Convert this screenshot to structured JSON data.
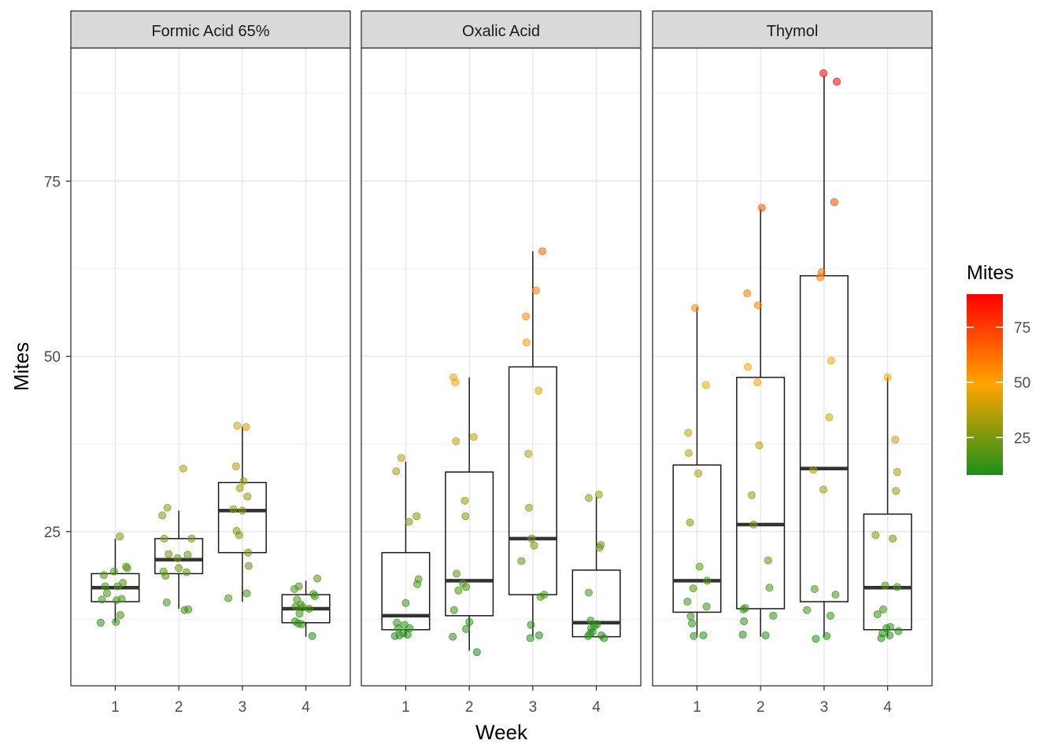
{
  "chart_data": {
    "type": "boxplot-jitter",
    "xlabel": "Week",
    "ylabel": "Mites",
    "ylim": [
      3,
      94
    ],
    "y_ticks": [
      25,
      50,
      75
    ],
    "x_ticks": [
      "1",
      "2",
      "3",
      "4"
    ],
    "legend": {
      "title": "Mites",
      "ticks": [
        25,
        50,
        75
      ],
      "range": [
        8,
        90
      ],
      "colors": [
        "#1a8f1a",
        "#ffa500",
        "#ff0000"
      ],
      "placement": "right"
    },
    "panels": [
      {
        "name": "Formic Acid 65%",
        "boxes": [
          {
            "week": 1,
            "min": 12,
            "q1": 15,
            "median": 17,
            "q3": 19,
            "max": 24
          },
          {
            "week": 2,
            "min": 14,
            "q1": 19,
            "median": 21,
            "q3": 24,
            "max": 28
          },
          {
            "week": 3,
            "min": 15,
            "q1": 22,
            "median": 28,
            "q3": 32,
            "max": 40
          },
          {
            "week": 4,
            "min": 10,
            "q1": 12,
            "median": 14,
            "q3": 16,
            "max": 18
          }
        ],
        "points": [
          {
            "x": 0.77,
            "y": 12
          },
          {
            "x": 0.79,
            "y": 15.3
          },
          {
            "x": 0.82,
            "y": 18.8
          },
          {
            "x": 0.84,
            "y": 17.2
          },
          {
            "x": 0.87,
            "y": 16.2
          },
          {
            "x": 0.98,
            "y": 19.3
          },
          {
            "x": 1.01,
            "y": 12.1
          },
          {
            "x": 1.02,
            "y": 15.2
          },
          {
            "x": 1.04,
            "y": 17.2
          },
          {
            "x": 1.07,
            "y": 24.3
          },
          {
            "x": 1.08,
            "y": 13.1
          },
          {
            "x": 1.1,
            "y": 15.4
          },
          {
            "x": 1.12,
            "y": 17.7
          },
          {
            "x": 1.17,
            "y": 20
          },
          {
            "x": 1.19,
            "y": 19.8
          },
          {
            "x": 1.74,
            "y": 27.3
          },
          {
            "x": 1.76,
            "y": 19.3
          },
          {
            "x": 1.77,
            "y": 24
          },
          {
            "x": 1.79,
            "y": 18.7
          },
          {
            "x": 1.81,
            "y": 14.9
          },
          {
            "x": 1.82,
            "y": 28.4
          },
          {
            "x": 1.84,
            "y": 21.8
          },
          {
            "x": 1.98,
            "y": 21.2
          },
          {
            "x": 2.0,
            "y": 19.8
          },
          {
            "x": 2.07,
            "y": 34
          },
          {
            "x": 2.09,
            "y": 13.8
          },
          {
            "x": 2.12,
            "y": 19.2
          },
          {
            "x": 2.14,
            "y": 21.7
          },
          {
            "x": 2.15,
            "y": 13.9
          },
          {
            "x": 2.2,
            "y": 24
          },
          {
            "x": 2.78,
            "y": 15.5
          },
          {
            "x": 2.86,
            "y": 28.2
          },
          {
            "x": 2.9,
            "y": 34.3
          },
          {
            "x": 2.91,
            "y": 25.1
          },
          {
            "x": 2.92,
            "y": 40.1
          },
          {
            "x": 2.95,
            "y": 24.5
          },
          {
            "x": 2.96,
            "y": 31.2
          },
          {
            "x": 3.0,
            "y": 28
          },
          {
            "x": 3.02,
            "y": 32.2
          },
          {
            "x": 3.06,
            "y": 39.9
          },
          {
            "x": 3.07,
            "y": 16.2
          },
          {
            "x": 3.08,
            "y": 30
          },
          {
            "x": 3.09,
            "y": 22
          },
          {
            "x": 3.1,
            "y": 20.1
          },
          {
            "x": 3.82,
            "y": 16.8
          },
          {
            "x": 3.83,
            "y": 12.2
          },
          {
            "x": 3.84,
            "y": 14.3
          },
          {
            "x": 3.86,
            "y": 15.3
          },
          {
            "x": 3.88,
            "y": 11.9
          },
          {
            "x": 3.89,
            "y": 17.2
          },
          {
            "x": 3.9,
            "y": 13.3
          },
          {
            "x": 3.92,
            "y": 14.6
          },
          {
            "x": 3.93,
            "y": 11.8
          },
          {
            "x": 3.95,
            "y": 14.2
          },
          {
            "x": 4.1,
            "y": 10.1
          },
          {
            "x": 4.12,
            "y": 16.1
          },
          {
            "x": 4.14,
            "y": 15.8
          },
          {
            "x": 4.18,
            "y": 18.3
          },
          {
            "x": 4.05,
            "y": 14
          }
        ]
      },
      {
        "name": "Oxalic Acid",
        "boxes": [
          {
            "week": 1,
            "min": 10,
            "q1": 11,
            "median": 13,
            "q3": 22,
            "max": 35
          },
          {
            "week": 2,
            "min": 8,
            "q1": 13,
            "median": 18,
            "q3": 33.5,
            "max": 47
          },
          {
            "week": 3,
            "min": 10,
            "q1": 16,
            "median": 24,
            "q3": 48.5,
            "max": 65
          },
          {
            "week": 4,
            "min": 10,
            "q1": 10,
            "median": 12,
            "q3": 19.5,
            "max": 30
          }
        ],
        "points": [
          {
            "x": 0.83,
            "y": 10.1
          },
          {
            "x": 0.85,
            "y": 33.6
          },
          {
            "x": 0.86,
            "y": 12
          },
          {
            "x": 0.88,
            "y": 11.2
          },
          {
            "x": 0.9,
            "y": 10.2
          },
          {
            "x": 0.93,
            "y": 35.5
          },
          {
            "x": 0.96,
            "y": 10.5
          },
          {
            "x": 0.98,
            "y": 11.7
          },
          {
            "x": 1.0,
            "y": 14.8
          },
          {
            "x": 1.03,
            "y": 10.3
          },
          {
            "x": 1.05,
            "y": 26.4
          },
          {
            "x": 1.06,
            "y": 11.2
          },
          {
            "x": 1.17,
            "y": 27.2
          },
          {
            "x": 1.18,
            "y": 17.5
          },
          {
            "x": 1.2,
            "y": 18.2
          },
          {
            "x": 1.74,
            "y": 10
          },
          {
            "x": 1.75,
            "y": 47
          },
          {
            "x": 1.76,
            "y": 13.8
          },
          {
            "x": 1.78,
            "y": 46.3
          },
          {
            "x": 1.79,
            "y": 37.9
          },
          {
            "x": 1.8,
            "y": 19
          },
          {
            "x": 1.83,
            "y": 16.6
          },
          {
            "x": 1.9,
            "y": 17.6
          },
          {
            "x": 1.93,
            "y": 29.4
          },
          {
            "x": 1.94,
            "y": 27.2
          },
          {
            "x": 1.95,
            "y": 17.1
          },
          {
            "x": 1.95,
            "y": 11.1
          },
          {
            "x": 2.0,
            "y": 12.1
          },
          {
            "x": 2.07,
            "y": 38.5
          },
          {
            "x": 2.12,
            "y": 7.8
          },
          {
            "x": 2.82,
            "y": 20.8
          },
          {
            "x": 2.89,
            "y": 55.7
          },
          {
            "x": 2.9,
            "y": 52
          },
          {
            "x": 2.93,
            "y": 36.1
          },
          {
            "x": 2.94,
            "y": 28.4
          },
          {
            "x": 2.96,
            "y": 9.8
          },
          {
            "x": 2.97,
            "y": 11.7
          },
          {
            "x": 2.98,
            "y": 24
          },
          {
            "x": 3.02,
            "y": 23
          },
          {
            "x": 3.05,
            "y": 59.4
          },
          {
            "x": 3.09,
            "y": 45.1
          },
          {
            "x": 3.1,
            "y": 10.2
          },
          {
            "x": 3.12,
            "y": 15.7
          },
          {
            "x": 3.15,
            "y": 65
          },
          {
            "x": 3.18,
            "y": 16
          },
          {
            "x": 3.87,
            "y": 10.1
          },
          {
            "x": 3.88,
            "y": 29.8
          },
          {
            "x": 3.88,
            "y": 16.3
          },
          {
            "x": 3.9,
            "y": 10.4
          },
          {
            "x": 3.91,
            "y": 12.3
          },
          {
            "x": 3.92,
            "y": 11.2
          },
          {
            "x": 3.94,
            "y": 10.7
          },
          {
            "x": 3.97,
            "y": 11.5
          },
          {
            "x": 4.01,
            "y": 11.8
          },
          {
            "x": 4.04,
            "y": 30.3
          },
          {
            "x": 4.05,
            "y": 22.7
          },
          {
            "x": 4.07,
            "y": 23.1
          },
          {
            "x": 4.08,
            "y": 10.2
          },
          {
            "x": 4.12,
            "y": 9.8
          }
        ]
      },
      {
        "name": "Thymol",
        "boxes": [
          {
            "week": 1,
            "min": 10,
            "q1": 13.5,
            "median": 18,
            "q3": 34.5,
            "max": 57
          },
          {
            "week": 2,
            "min": 10,
            "q1": 14,
            "median": 26,
            "q3": 47,
            "max": 71
          },
          {
            "week": 3,
            "min": 10,
            "q1": 15,
            "median": 34,
            "q3": 61.5,
            "max": 90
          },
          {
            "week": 4,
            "min": 10,
            "q1": 11,
            "median": 17,
            "q3": 27.5,
            "max": 47
          }
        ],
        "points": [
          {
            "x": 0.86,
            "y": 39.1
          },
          {
            "x": 0.87,
            "y": 36.2
          },
          {
            "x": 0.85,
            "y": 15
          },
          {
            "x": 0.89,
            "y": 26.3
          },
          {
            "x": 0.9,
            "y": 12.9
          },
          {
            "x": 0.92,
            "y": 11.9
          },
          {
            "x": 0.94,
            "y": 16.9
          },
          {
            "x": 0.95,
            "y": 10.1
          },
          {
            "x": 0.97,
            "y": 56.9
          },
          {
            "x": 1.02,
            "y": 33.3
          },
          {
            "x": 1.04,
            "y": 20
          },
          {
            "x": 1.1,
            "y": 10.2
          },
          {
            "x": 1.14,
            "y": 45.9
          },
          {
            "x": 1.15,
            "y": 14.3
          },
          {
            "x": 1.16,
            "y": 18
          },
          {
            "x": 1.72,
            "y": 10.3
          },
          {
            "x": 1.73,
            "y": 13.9
          },
          {
            "x": 1.74,
            "y": 12.2
          },
          {
            "x": 1.76,
            "y": 14.1
          },
          {
            "x": 1.79,
            "y": 59
          },
          {
            "x": 1.8,
            "y": 48.5
          },
          {
            "x": 1.86,
            "y": 30.2
          },
          {
            "x": 1.89,
            "y": 26
          },
          {
            "x": 1.95,
            "y": 46.3
          },
          {
            "x": 1.96,
            "y": 57.3
          },
          {
            "x": 1.98,
            "y": 37.3
          },
          {
            "x": 2.02,
            "y": 71.2
          },
          {
            "x": 2.08,
            "y": 10.2
          },
          {
            "x": 2.12,
            "y": 20.9
          },
          {
            "x": 2.14,
            "y": 17
          },
          {
            "x": 2.2,
            "y": 13
          },
          {
            "x": 2.73,
            "y": 13.8
          },
          {
            "x": 2.83,
            "y": 33.8
          },
          {
            "x": 2.85,
            "y": 16.8
          },
          {
            "x": 2.87,
            "y": 9.7
          },
          {
            "x": 2.94,
            "y": 61.3
          },
          {
            "x": 2.96,
            "y": 62
          },
          {
            "x": 2.99,
            "y": 31
          },
          {
            "x": 2.99,
            "y": 90.4
          },
          {
            "x": 3.04,
            "y": 10.1
          },
          {
            "x": 3.08,
            "y": 41.3
          },
          {
            "x": 3.1,
            "y": 13
          },
          {
            "x": 3.11,
            "y": 49.4
          },
          {
            "x": 3.16,
            "y": 72
          },
          {
            "x": 3.18,
            "y": 16
          },
          {
            "x": 3.2,
            "y": 89.2
          },
          {
            "x": 3.81,
            "y": 24.5
          },
          {
            "x": 3.84,
            "y": 13.2
          },
          {
            "x": 3.9,
            "y": 9.8
          },
          {
            "x": 3.93,
            "y": 13.9
          },
          {
            "x": 3.92,
            "y": 10.5
          },
          {
            "x": 3.96,
            "y": 17.3
          },
          {
            "x": 3.98,
            "y": 11.2
          },
          {
            "x": 4.0,
            "y": 47
          },
          {
            "x": 4.03,
            "y": 10.2
          },
          {
            "x": 4.04,
            "y": 11.4
          },
          {
            "x": 4.08,
            "y": 24
          },
          {
            "x": 4.12,
            "y": 38.1
          },
          {
            "x": 4.15,
            "y": 33.5
          },
          {
            "x": 4.13,
            "y": 30.8
          },
          {
            "x": 4.15,
            "y": 17.1
          },
          {
            "x": 4.17,
            "y": 10.8
          }
        ]
      }
    ]
  }
}
